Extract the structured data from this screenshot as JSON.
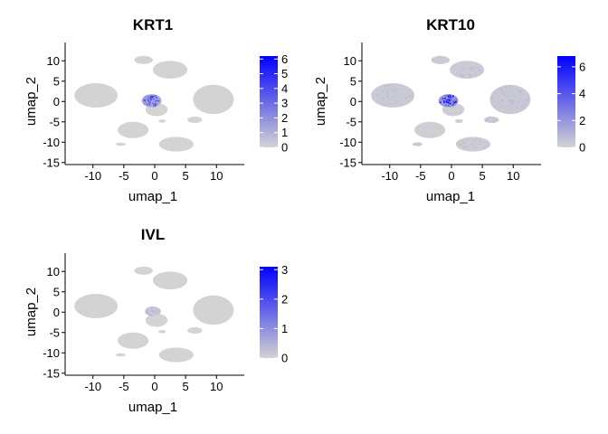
{
  "chart_data": [
    {
      "type": "scatter",
      "title": "KRT1",
      "xlabel": "umap_1",
      "ylabel": "umap_2",
      "xlim": [
        -14.5,
        14.5
      ],
      "ylim": [
        -15.5,
        14.5
      ],
      "xticks": [
        -10,
        -5,
        0,
        5,
        10
      ],
      "yticks": [
        10,
        5,
        0,
        -5,
        -10,
        -15
      ],
      "color_scale": {
        "low": "#d3d3d3",
        "high": "#0000ff",
        "min": 0,
        "max": 6.2,
        "ticks": [
          6,
          5,
          4,
          3,
          2,
          1,
          0
        ]
      },
      "clusters": [
        {
          "x": -9.5,
          "y": 1.5,
          "rx": 3.5,
          "ry": 3.0,
          "value": 0
        },
        {
          "x": 2.5,
          "y": 7.8,
          "rx": 2.8,
          "ry": 2.2,
          "value": 0
        },
        {
          "x": -1.8,
          "y": 10.2,
          "rx": 1.5,
          "ry": 1.0,
          "value": 0
        },
        {
          "x": 9.5,
          "y": 0.5,
          "rx": 3.3,
          "ry": 3.6,
          "value": 0
        },
        {
          "x": 0.3,
          "y": -2.0,
          "rx": 1.8,
          "ry": 1.6,
          "value": 0
        },
        {
          "x": -3.5,
          "y": -7.0,
          "rx": 2.5,
          "ry": 2.0,
          "value": 0
        },
        {
          "x": 3.5,
          "y": -10.5,
          "rx": 2.8,
          "ry": 1.8,
          "value": 0
        },
        {
          "x": 6.5,
          "y": -4.5,
          "rx": 1.2,
          "ry": 0.8,
          "value": 0
        },
        {
          "x": -0.5,
          "y": 0.2,
          "rx": 1.6,
          "ry": 1.6,
          "value": 3.5
        },
        {
          "x": -1.8,
          "y": 10.6,
          "rx": 0.8,
          "ry": 0.5,
          "value": 0
        },
        {
          "x": -5.5,
          "y": -10.5,
          "rx": 0.8,
          "ry": 0.4,
          "value": 0
        },
        {
          "x": 1.2,
          "y": -4.8,
          "rx": 0.6,
          "ry": 0.4,
          "value": 0
        }
      ]
    },
    {
      "type": "scatter",
      "title": "KRT10",
      "xlabel": "umap_1",
      "ylabel": "umap_2",
      "xlim": [
        -14.5,
        14.5
      ],
      "ylim": [
        -15.5,
        14.5
      ],
      "xticks": [
        -10,
        -5,
        0,
        5,
        10
      ],
      "yticks": [
        10,
        5,
        0,
        -5,
        -10,
        -15
      ],
      "color_scale": {
        "low": "#d3d3d3",
        "high": "#0000ff",
        "min": 0,
        "max": 6.8,
        "ticks": [
          6,
          4,
          2,
          0
        ]
      },
      "clusters": [
        {
          "x": -9.5,
          "y": 1.5,
          "rx": 3.5,
          "ry": 3.0,
          "value": 0.8
        },
        {
          "x": 2.5,
          "y": 7.8,
          "rx": 2.8,
          "ry": 2.2,
          "value": 0.7
        },
        {
          "x": -1.8,
          "y": 10.2,
          "rx": 1.5,
          "ry": 1.0,
          "value": 0.4
        },
        {
          "x": 9.5,
          "y": 0.5,
          "rx": 3.3,
          "ry": 3.6,
          "value": 0.9
        },
        {
          "x": 0.3,
          "y": -2.0,
          "rx": 1.8,
          "ry": 1.6,
          "value": 0.3
        },
        {
          "x": -3.5,
          "y": -7.0,
          "rx": 2.5,
          "ry": 2.0,
          "value": 0.3
        },
        {
          "x": 3.5,
          "y": -10.5,
          "rx": 2.8,
          "ry": 1.8,
          "value": 0.6
        },
        {
          "x": 6.5,
          "y": -4.5,
          "rx": 1.2,
          "ry": 0.8,
          "value": 0.6
        },
        {
          "x": -0.5,
          "y": 0.2,
          "rx": 1.6,
          "ry": 1.6,
          "value": 5.5
        },
        {
          "x": -1.8,
          "y": 10.6,
          "rx": 0.8,
          "ry": 0.5,
          "value": 0.4
        },
        {
          "x": -5.5,
          "y": -10.5,
          "rx": 0.8,
          "ry": 0.4,
          "value": 0.5
        },
        {
          "x": 1.2,
          "y": -4.8,
          "rx": 0.6,
          "ry": 0.4,
          "value": 0.2
        }
      ]
    },
    {
      "type": "scatter",
      "title": "IVL",
      "xlabel": "umap_1",
      "ylabel": "umap_2",
      "xlim": [
        -14.5,
        14.5
      ],
      "ylim": [
        -15.5,
        14.5
      ],
      "xticks": [
        -10,
        -5,
        0,
        5,
        10
      ],
      "yticks": [
        10,
        5,
        0,
        -5,
        -10,
        -15
      ],
      "color_scale": {
        "low": "#d3d3d3",
        "high": "#0000ff",
        "min": 0,
        "max": 3.1,
        "ticks": [
          3,
          2,
          1,
          0
        ]
      },
      "clusters": [
        {
          "x": -9.5,
          "y": 1.5,
          "rx": 3.5,
          "ry": 3.0,
          "value": 0
        },
        {
          "x": 2.5,
          "y": 7.8,
          "rx": 2.8,
          "ry": 2.2,
          "value": 0
        },
        {
          "x": -1.8,
          "y": 10.2,
          "rx": 1.5,
          "ry": 1.0,
          "value": 0
        },
        {
          "x": 9.5,
          "y": 0.5,
          "rx": 3.3,
          "ry": 3.6,
          "value": 0
        },
        {
          "x": 0.3,
          "y": -2.0,
          "rx": 1.8,
          "ry": 1.6,
          "value": 0
        },
        {
          "x": -3.5,
          "y": -7.0,
          "rx": 2.5,
          "ry": 2.0,
          "value": 0
        },
        {
          "x": 3.5,
          "y": -10.5,
          "rx": 2.8,
          "ry": 1.8,
          "value": 0
        },
        {
          "x": 6.5,
          "y": -4.5,
          "rx": 1.2,
          "ry": 0.8,
          "value": 0
        },
        {
          "x": -0.3,
          "y": 0.2,
          "rx": 1.3,
          "ry": 1.2,
          "value": 0.4
        },
        {
          "x": -1.8,
          "y": 10.6,
          "rx": 0.8,
          "ry": 0.5,
          "value": 0
        },
        {
          "x": -5.5,
          "y": -10.5,
          "rx": 0.8,
          "ry": 0.4,
          "value": 0
        },
        {
          "x": 1.2,
          "y": -4.8,
          "rx": 0.6,
          "ry": 0.4,
          "value": 0
        }
      ]
    }
  ]
}
